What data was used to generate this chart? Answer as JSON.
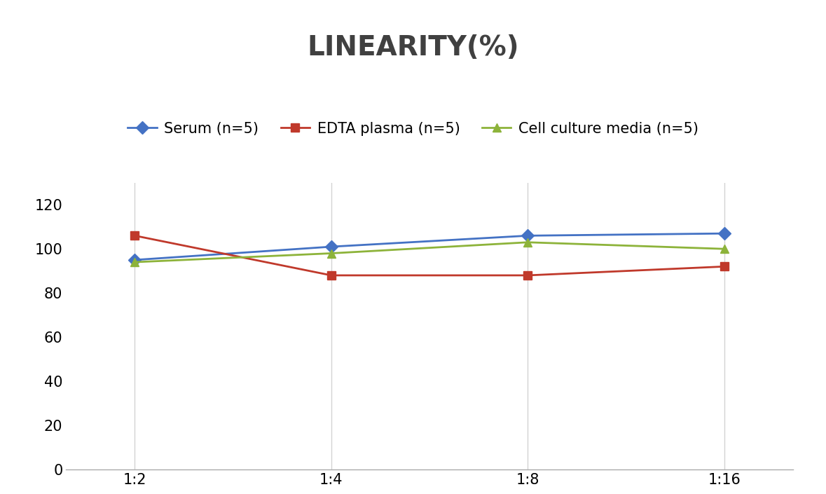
{
  "title": "LINEARITY(%)",
  "x_labels": [
    "1:2",
    "1:4",
    "1:8",
    "1:16"
  ],
  "x_positions": [
    0,
    1,
    2,
    3
  ],
  "series": [
    {
      "name": "Serum (n=5)",
      "values": [
        95,
        101,
        106,
        107
      ],
      "color": "#4472C4",
      "marker": "D",
      "marker_size": 9,
      "linewidth": 2
    },
    {
      "name": "EDTA plasma (n=5)",
      "values": [
        106,
        88,
        88,
        92
      ],
      "color": "#C0392B",
      "marker": "s",
      "marker_size": 9,
      "linewidth": 2
    },
    {
      "name": "Cell culture media (n=5)",
      "values": [
        94,
        98,
        103,
        100
      ],
      "color": "#8DB33A",
      "marker": "^",
      "marker_size": 9,
      "linewidth": 2
    }
  ],
  "ylim": [
    0,
    130
  ],
  "yticks": [
    0,
    20,
    40,
    60,
    80,
    100,
    120
  ],
  "grid_color": "#D3D3D3",
  "background_color": "#FFFFFF",
  "title_fontsize": 28,
  "title_color": "#404040",
  "legend_fontsize": 15,
  "tick_fontsize": 15
}
